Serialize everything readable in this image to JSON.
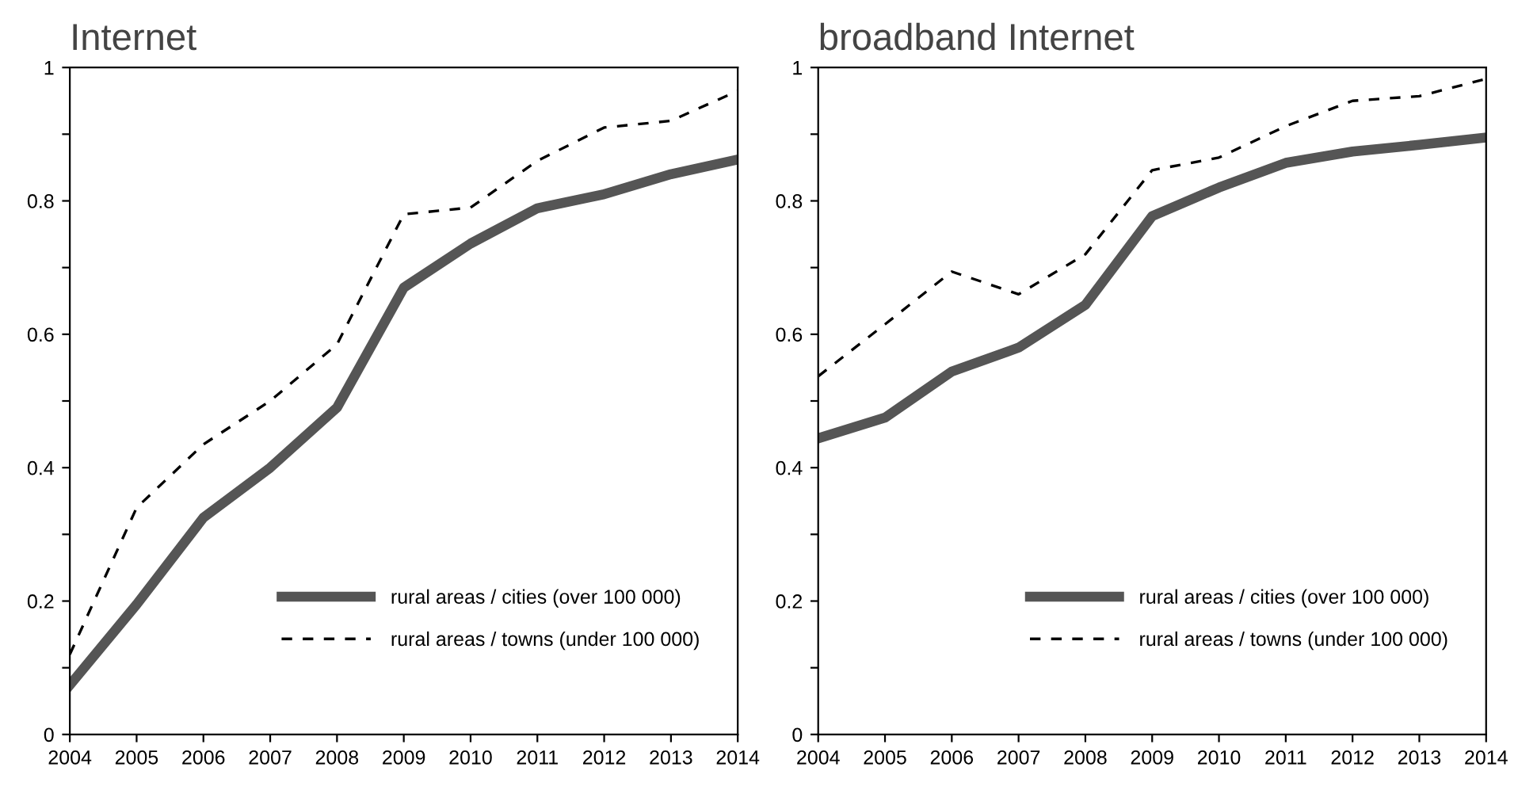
{
  "chart_data": [
    {
      "type": "line",
      "title": "Internet",
      "x": [
        2004,
        2005,
        2006,
        2007,
        2008,
        2009,
        2010,
        2011,
        2012,
        2013,
        2014
      ],
      "xlim": [
        2004,
        2014
      ],
      "xticks": [
        2004,
        2005,
        2006,
        2007,
        2008,
        2009,
        2010,
        2011,
        2012,
        2013,
        2014
      ],
      "ylim": [
        0,
        1
      ],
      "yticks": [
        0,
        {
          "value": 0.1,
          "label": null
        },
        0.2,
        {
          "value": 0.3,
          "label": null
        },
        0.4,
        {
          "value": 0.5,
          "label": null
        },
        0.6,
        {
          "value": 0.7,
          "label": null
        },
        0.8,
        {
          "value": 0.9,
          "label": null
        },
        1
      ],
      "grid": false,
      "legend": "bottom right",
      "marker": "none",
      "series": [
        {
          "name": "rural areas / cities (over 100 000)",
          "color": "#555555",
          "line_style": "solid",
          "values": [
            0.074,
            0.195,
            0.325,
            0.4,
            0.49,
            0.67,
            0.736,
            0.789,
            0.81,
            0.84,
            0.862
          ]
        },
        {
          "name": "rural areas / towns (under 100 000)",
          "color": "#000000",
          "line_style": "dashed",
          "values": [
            0.12,
            0.34,
            0.435,
            0.5,
            0.585,
            0.78,
            0.79,
            0.86,
            0.91,
            0.92,
            0.965
          ]
        }
      ]
    },
    {
      "type": "line",
      "title": "broadband Internet",
      "x": [
        2004,
        2005,
        2006,
        2007,
        2008,
        2009,
        2010,
        2011,
        2012,
        2013,
        2014
      ],
      "xlim": [
        2004,
        2014
      ],
      "xticks": [
        2004,
        2005,
        2006,
        2007,
        2008,
        2009,
        2010,
        2011,
        2012,
        2013,
        2014
      ],
      "ylim": [
        0,
        1
      ],
      "yticks": [
        0,
        {
          "value": 0.1,
          "label": null
        },
        0.2,
        {
          "value": 0.3,
          "label": null
        },
        0.4,
        {
          "value": 0.5,
          "label": null
        },
        0.6,
        {
          "value": 0.7,
          "label": null
        },
        0.8,
        {
          "value": 0.9,
          "label": null
        },
        1
      ],
      "grid": false,
      "legend": "bottom right",
      "marker": "none",
      "series": [
        {
          "name": "rural areas / cities (over 100 000)",
          "color": "#555555",
          "line_style": "solid",
          "values": [
            0.444,
            0.475,
            0.544,
            0.58,
            0.644,
            0.777,
            0.82,
            0.857,
            0.874,
            0.884,
            0.895
          ]
        },
        {
          "name": "rural areas / towns (under 100 000)",
          "color": "#000000",
          "line_style": "dashed",
          "values": [
            0.537,
            0.615,
            0.694,
            0.66,
            0.72,
            0.846,
            0.865,
            0.912,
            0.95,
            0.957,
            0.983
          ]
        }
      ]
    }
  ]
}
